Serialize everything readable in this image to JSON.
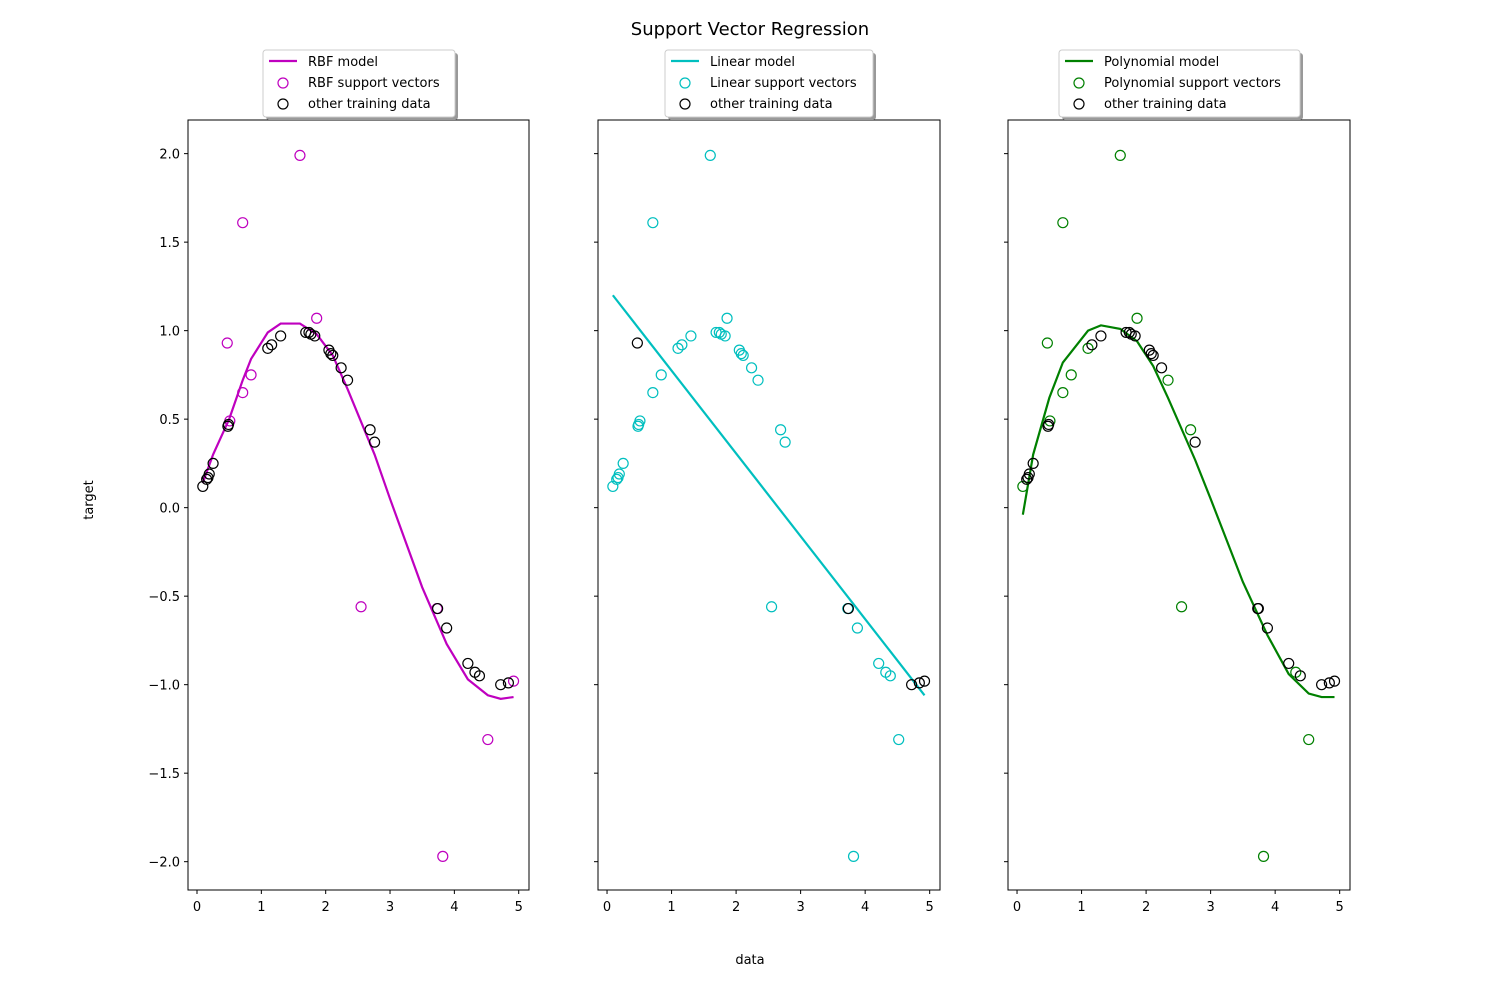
{
  "chart_data": {
    "type": "scatter",
    "title": "Support Vector Regression",
    "xlabel": "data",
    "ylabel": "target",
    "xlim": [
      -0.14,
      5.16
    ],
    "ylim": [
      -2.16,
      2.19
    ],
    "xticks": [
      0,
      1,
      2,
      3,
      4,
      5
    ],
    "yticks": [
      2.0,
      1.5,
      1.0,
      0.5,
      0.0,
      -0.5,
      -1.0,
      -1.5,
      -2.0
    ],
    "ytick_labels": [
      "2.0",
      "1.5",
      "1.0",
      "0.5",
      "0.0",
      "−0.5",
      "−1.0",
      "−1.5",
      "−2.0"
    ],
    "grid": false,
    "shared_y": true,
    "legend_placement": "upper-center, above each axes",
    "panels": [
      {
        "model_label": "RBF model",
        "sv_label": "RBF support vectors",
        "other_label": "other training data",
        "color": "#bf00bf",
        "model_curve": [
          [
            0.09,
            0.14
          ],
          [
            0.25,
            0.3
          ],
          [
            0.5,
            0.5
          ],
          [
            0.71,
            0.72
          ],
          [
            0.84,
            0.84
          ],
          [
            1.1,
            0.99
          ],
          [
            1.3,
            1.04
          ],
          [
            1.6,
            1.04
          ],
          [
            1.86,
            0.98
          ],
          [
            2.11,
            0.86
          ],
          [
            2.34,
            0.67
          ],
          [
            2.76,
            0.3
          ],
          [
            3.0,
            0.05
          ],
          [
            3.5,
            -0.45
          ],
          [
            3.88,
            -0.77
          ],
          [
            4.21,
            -0.97
          ],
          [
            4.52,
            -1.06
          ],
          [
            4.72,
            -1.08
          ],
          [
            4.92,
            -1.07
          ]
        ],
        "support_vectors": [
          [
            0.47,
            0.93
          ],
          [
            0.51,
            0.49
          ],
          [
            0.71,
            1.61
          ],
          [
            0.71,
            0.65
          ],
          [
            0.84,
            0.75
          ],
          [
            1.6,
            1.99
          ],
          [
            1.86,
            1.07
          ],
          [
            2.55,
            -0.56
          ],
          [
            3.73,
            -0.57
          ],
          [
            3.82,
            -1.97
          ],
          [
            4.52,
            -1.31
          ],
          [
            4.92,
            -0.98
          ]
        ],
        "other_training_data": [
          [
            0.09,
            0.12
          ],
          [
            0.15,
            0.16
          ],
          [
            0.17,
            0.17
          ],
          [
            0.19,
            0.19
          ],
          [
            0.25,
            0.25
          ],
          [
            0.48,
            0.46
          ],
          [
            0.49,
            0.47
          ],
          [
            1.1,
            0.9
          ],
          [
            1.16,
            0.92
          ],
          [
            1.3,
            0.97
          ],
          [
            1.69,
            0.99
          ],
          [
            1.74,
            0.99
          ],
          [
            1.77,
            0.98
          ],
          [
            1.83,
            0.97
          ],
          [
            2.05,
            0.89
          ],
          [
            2.08,
            0.87
          ],
          [
            2.11,
            0.86
          ],
          [
            2.24,
            0.79
          ],
          [
            2.34,
            0.72
          ],
          [
            2.69,
            0.44
          ],
          [
            2.76,
            0.37
          ],
          [
            3.74,
            -0.57
          ],
          [
            3.88,
            -0.68
          ],
          [
            4.21,
            -0.88
          ],
          [
            4.32,
            -0.93
          ],
          [
            4.39,
            -0.95
          ],
          [
            4.72,
            -1.0
          ],
          [
            4.84,
            -0.99
          ]
        ]
      },
      {
        "model_label": "Linear model",
        "sv_label": "Linear support vectors",
        "other_label": "other training data",
        "color": "#00bfbf",
        "model_curve": [
          [
            0.09,
            1.2
          ],
          [
            4.92,
            -1.06
          ]
        ],
        "support_vectors": [
          [
            0.09,
            0.12
          ],
          [
            0.15,
            0.16
          ],
          [
            0.17,
            0.17
          ],
          [
            0.19,
            0.19
          ],
          [
            0.25,
            0.25
          ],
          [
            0.48,
            0.46
          ],
          [
            0.49,
            0.47
          ],
          [
            0.51,
            0.49
          ],
          [
            0.71,
            1.61
          ],
          [
            0.71,
            0.65
          ],
          [
            0.84,
            0.75
          ],
          [
            1.1,
            0.9
          ],
          [
            1.16,
            0.92
          ],
          [
            1.3,
            0.97
          ],
          [
            1.6,
            1.99
          ],
          [
            1.69,
            0.99
          ],
          [
            1.74,
            0.99
          ],
          [
            1.77,
            0.98
          ],
          [
            1.83,
            0.97
          ],
          [
            1.86,
            1.07
          ],
          [
            2.05,
            0.89
          ],
          [
            2.08,
            0.87
          ],
          [
            2.11,
            0.86
          ],
          [
            2.24,
            0.79
          ],
          [
            2.34,
            0.72
          ],
          [
            2.55,
            -0.56
          ],
          [
            2.69,
            0.44
          ],
          [
            2.76,
            0.37
          ],
          [
            3.73,
            -0.57
          ],
          [
            3.82,
            -1.97
          ],
          [
            3.88,
            -0.68
          ],
          [
            4.21,
            -0.88
          ],
          [
            4.32,
            -0.93
          ],
          [
            4.39,
            -0.95
          ],
          [
            4.52,
            -1.31
          ]
        ],
        "other_training_data": [
          [
            0.47,
            0.93
          ],
          [
            3.74,
            -0.57
          ],
          [
            4.72,
            -1.0
          ],
          [
            4.84,
            -0.99
          ],
          [
            4.92,
            -0.98
          ]
        ]
      },
      {
        "model_label": "Polynomial model",
        "sv_label": "Polynomial support vectors",
        "other_label": "other training data",
        "color": "#008000",
        "model_curve": [
          [
            0.09,
            -0.04
          ],
          [
            0.25,
            0.3
          ],
          [
            0.5,
            0.62
          ],
          [
            0.71,
            0.82
          ],
          [
            0.84,
            0.88
          ],
          [
            1.1,
            1.0
          ],
          [
            1.3,
            1.03
          ],
          [
            1.6,
            1.01
          ],
          [
            1.86,
            0.94
          ],
          [
            2.11,
            0.8
          ],
          [
            2.34,
            0.62
          ],
          [
            2.76,
            0.27
          ],
          [
            3.0,
            0.05
          ],
          [
            3.5,
            -0.42
          ],
          [
            3.88,
            -0.72
          ],
          [
            4.21,
            -0.94
          ],
          [
            4.52,
            -1.05
          ],
          [
            4.72,
            -1.07
          ],
          [
            4.92,
            -1.07
          ]
        ],
        "support_vectors": [
          [
            0.09,
            0.12
          ],
          [
            0.47,
            0.93
          ],
          [
            0.51,
            0.49
          ],
          [
            0.71,
            1.61
          ],
          [
            0.71,
            0.65
          ],
          [
            0.84,
            0.75
          ],
          [
            1.1,
            0.9
          ],
          [
            1.6,
            1.99
          ],
          [
            1.86,
            1.07
          ],
          [
            2.34,
            0.72
          ],
          [
            2.55,
            -0.56
          ],
          [
            2.69,
            0.44
          ],
          [
            3.82,
            -1.97
          ],
          [
            4.32,
            -0.93
          ],
          [
            4.52,
            -1.31
          ]
        ],
        "other_training_data": [
          [
            0.15,
            0.16
          ],
          [
            0.17,
            0.17
          ],
          [
            0.19,
            0.19
          ],
          [
            0.25,
            0.25
          ],
          [
            0.48,
            0.46
          ],
          [
            0.49,
            0.47
          ],
          [
            1.16,
            0.92
          ],
          [
            1.3,
            0.97
          ],
          [
            1.69,
            0.99
          ],
          [
            1.74,
            0.99
          ],
          [
            1.77,
            0.98
          ],
          [
            1.83,
            0.97
          ],
          [
            2.05,
            0.89
          ],
          [
            2.08,
            0.87
          ],
          [
            2.11,
            0.86
          ],
          [
            2.24,
            0.79
          ],
          [
            2.76,
            0.37
          ],
          [
            3.73,
            -0.57
          ],
          [
            3.74,
            -0.57
          ],
          [
            3.88,
            -0.68
          ],
          [
            4.21,
            -0.88
          ],
          [
            4.39,
            -0.95
          ],
          [
            4.72,
            -1.0
          ],
          [
            4.84,
            -0.99
          ],
          [
            4.92,
            -0.98
          ]
        ]
      }
    ]
  }
}
